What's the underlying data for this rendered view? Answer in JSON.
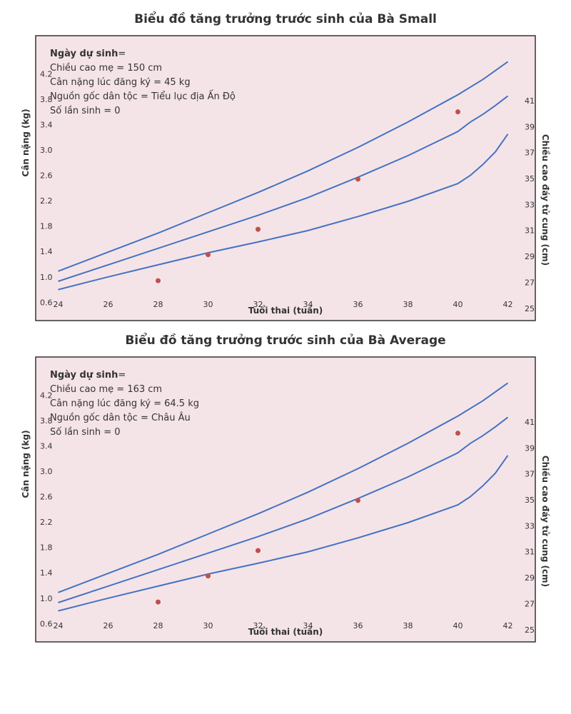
{
  "charts": [
    {
      "title": "Biểu đồ tăng trưởng trước sinh của Bà Small",
      "info": {
        "edd_label": "Ngày dự sinh",
        "edd_value": "=",
        "height": "Chiều cao mẹ = 150 cm",
        "weight": "Cân nặng lúc đăng ký = 45 kg",
        "ethnicity": "Nguồn gốc dân tộc = Tiểu lục địa Ấn Độ",
        "parity": "Số lần sinh = 0"
      }
    },
    {
      "title": "Biểu đồ tăng trưởng trước sinh của Bà Average",
      "info": {
        "edd_label": "Ngày dự sinh",
        "edd_value": "=",
        "height": "Chiều cao mẹ = 163 cm",
        "weight": "Cân nặng lúc đăng ký = 64.5 kg",
        "ethnicity": "Nguồn gốc dân tộc = Châu Âu",
        "parity": "Số lần sinh = 0"
      }
    }
  ],
  "chart_data": [
    {
      "type": "line",
      "title": "Biểu đồ tăng trưởng trước sinh của Bà Small",
      "xlabel": "Tuổi thai (tuần)",
      "ylabel": "Cân nặng (kg)",
      "y2label": "Chiều cao đáy tử cung (cm)",
      "xlim": [
        23.1,
        43.1
      ],
      "ylim": [
        0.3,
        4.8
      ],
      "y2lim": [
        24,
        46
      ],
      "xticks": [
        24,
        26,
        28,
        30,
        32,
        34,
        36,
        38,
        40,
        42
      ],
      "yticks": [
        "0.6",
        "1.0",
        "1.4",
        "1.8",
        "2.2",
        "2.6",
        "3.0",
        "3.4",
        "3.8",
        "4.2"
      ],
      "y2ticks": [
        "25",
        "27",
        "29",
        "31",
        "33",
        "35",
        "37",
        "39",
        "41"
      ],
      "line_color": "#4472c4",
      "point_color": "#c0504d",
      "background": "#f5e4e7",
      "series": [
        {
          "x": [
            24,
            26,
            28,
            30,
            32,
            34,
            36,
            38,
            40,
            41,
            42
          ],
          "y": [
            1.09,
            1.39,
            1.69,
            2.01,
            2.33,
            2.67,
            3.04,
            3.44,
            3.87,
            4.11,
            4.39
          ]
        },
        {
          "x": [
            24,
            26,
            28,
            30,
            32,
            34,
            36,
            38,
            40,
            40.5,
            41,
            41.5,
            42
          ],
          "y": [
            0.93,
            1.19,
            1.45,
            1.71,
            1.97,
            2.25,
            2.57,
            2.91,
            3.29,
            3.44,
            3.56,
            3.7,
            3.85
          ]
        },
        {
          "x": [
            24,
            26,
            28,
            30,
            32,
            34,
            36,
            38,
            40,
            40.5,
            41,
            41.5,
            42
          ],
          "y": [
            0.8,
            1.0,
            1.19,
            1.38,
            1.55,
            1.73,
            1.95,
            2.19,
            2.47,
            2.6,
            2.77,
            2.97,
            3.25
          ]
        }
      ],
      "points": {
        "x": [
          28,
          30,
          32,
          36,
          40
        ],
        "y": [
          0.94,
          1.35,
          1.75,
          2.54,
          3.6
        ]
      }
    },
    {
      "type": "line",
      "title": "Biểu đồ tăng trưởng trước sinh của Bà Average",
      "xlabel": "Tuổi thai (tuần)",
      "ylabel": "Cân nặng (kg)",
      "y2label": "Chiều cao đáy tử cung (cm)",
      "xlim": [
        23.1,
        43.1
      ],
      "ylim": [
        0.3,
        4.8
      ],
      "y2lim": [
        24,
        46
      ],
      "xticks": [
        24,
        26,
        28,
        30,
        32,
        34,
        36,
        38,
        40,
        42
      ],
      "yticks": [
        "0.6",
        "1.0",
        "1.4",
        "1.8",
        "2.2",
        "2.6",
        "3.0",
        "3.4",
        "3.8",
        "4.2"
      ],
      "y2ticks": [
        "25",
        "27",
        "29",
        "31",
        "33",
        "35",
        "37",
        "39",
        "41"
      ],
      "line_color": "#4472c4",
      "point_color": "#c0504d",
      "background": "#f5e4e7",
      "series": [
        {
          "x": [
            24,
            26,
            28,
            30,
            32,
            34,
            36,
            38,
            40,
            41,
            42
          ],
          "y": [
            1.09,
            1.39,
            1.69,
            2.01,
            2.33,
            2.67,
            3.04,
            3.44,
            3.87,
            4.11,
            4.39
          ]
        },
        {
          "x": [
            24,
            26,
            28,
            30,
            32,
            34,
            36,
            38,
            40,
            40.5,
            41,
            41.5,
            42
          ],
          "y": [
            0.93,
            1.19,
            1.45,
            1.71,
            1.97,
            2.25,
            2.57,
            2.91,
            3.29,
            3.44,
            3.56,
            3.7,
            3.85
          ]
        },
        {
          "x": [
            24,
            26,
            28,
            30,
            32,
            34,
            36,
            38,
            40,
            40.5,
            41,
            41.5,
            42
          ],
          "y": [
            0.8,
            1.0,
            1.19,
            1.38,
            1.55,
            1.73,
            1.95,
            2.19,
            2.47,
            2.6,
            2.77,
            2.97,
            3.25
          ]
        }
      ],
      "points": {
        "x": [
          28,
          30,
          32,
          36,
          40
        ],
        "y": [
          0.94,
          1.35,
          1.75,
          2.54,
          3.6
        ]
      }
    }
  ]
}
